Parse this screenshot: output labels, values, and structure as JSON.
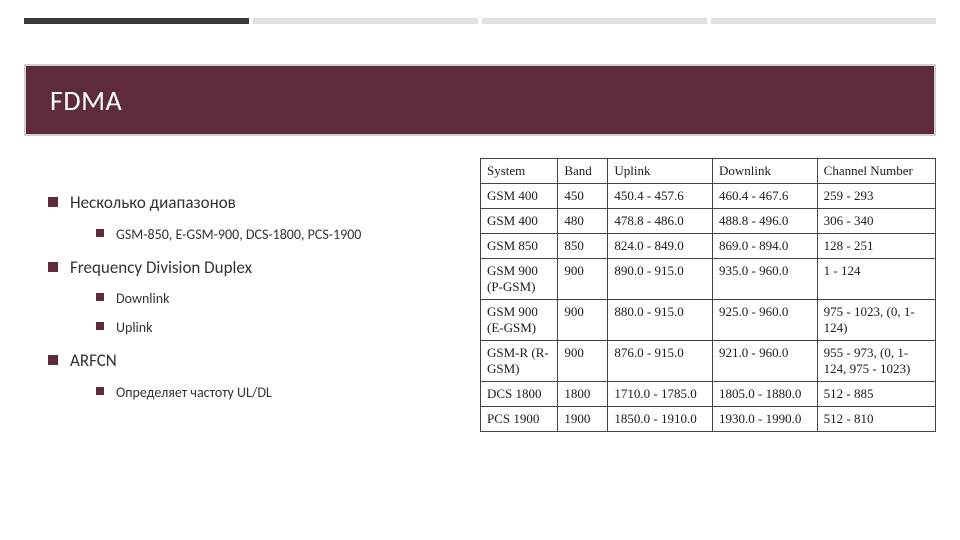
{
  "colors": {
    "accent": "#5e2b3a",
    "topbar_dark": "#3a3a3a",
    "topbar_light": "#e0e0e0",
    "title_border": "#d0d0d0",
    "text": "#333333",
    "table_border": "#444444",
    "background": "#ffffff"
  },
  "title": "FDMA",
  "bullets": [
    {
      "text": "Несколько диапазонов",
      "children": [
        {
          "text": "GSM-850, E-GSM-900, DCS-1800, PCS-1900"
        }
      ]
    },
    {
      "text": "Frequency Division Duplex",
      "children": [
        {
          "text": "Downlink"
        },
        {
          "text": "Uplink"
        }
      ]
    },
    {
      "text": "ARFCN",
      "children": [
        {
          "text": "Определяет частоту UL/DL"
        }
      ]
    }
  ],
  "table": {
    "columns": [
      "System",
      "Band",
      "Uplink",
      "Downlink",
      "Channel Number"
    ],
    "column_widths_pct": [
      17,
      11,
      23,
      23,
      26
    ],
    "rows": [
      [
        "GSM 400",
        "450",
        "450.4 - 457.6",
        "460.4 - 467.6",
        "259 - 293"
      ],
      [
        "GSM 400",
        "480",
        "478.8 - 486.0",
        "488.8 - 496.0",
        "306 - 340"
      ],
      [
        "GSM 850",
        "850",
        "824.0 - 849.0",
        "869.0 - 894.0",
        "128 - 251"
      ],
      [
        "GSM 900 (P-GSM)",
        "900",
        "890.0 - 915.0",
        "935.0 - 960.0",
        "1 - 124"
      ],
      [
        "GSM 900 (E-GSM)",
        "900",
        "880.0 - 915.0",
        "925.0 - 960.0",
        "975 - 1023, (0, 1-124)"
      ],
      [
        "GSM-R (R-GSM)",
        "900",
        "876.0 - 915.0",
        "921.0 - 960.0",
        "955 - 973, (0, 1-124, 975 - 1023)"
      ],
      [
        "DCS 1800",
        "1800",
        "1710.0 - 1785.0",
        "1805.0 - 1880.0",
        "512 - 885"
      ],
      [
        "PCS 1900",
        "1900",
        "1850.0 - 1910.0",
        "1930.0 - 1990.0",
        "512 - 810"
      ]
    ],
    "font_family": "Times New Roman",
    "font_size_pt": 10,
    "border_color": "#444444"
  }
}
